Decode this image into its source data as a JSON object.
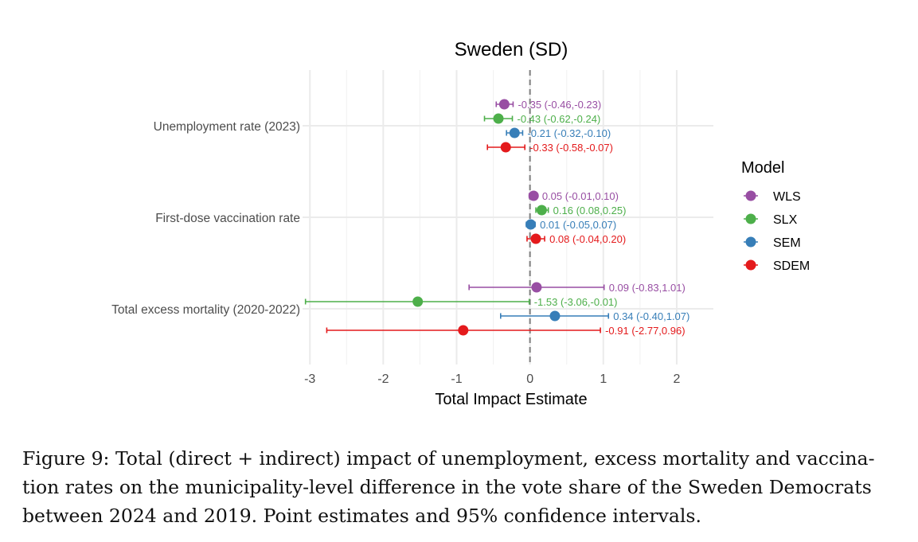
{
  "chart_data": {
    "type": "scatter",
    "subtype": "forest-plot",
    "title": "Sweden (SD)",
    "xlabel": "Total Impact Estimate",
    "ylabel": "",
    "xlim": [
      -3.1,
      2.5
    ],
    "xticks": [
      "-3",
      "-2",
      "-1",
      "0",
      "1",
      "2"
    ],
    "xtick_values": [
      -3,
      -2,
      -1,
      0,
      1,
      2
    ],
    "reference_line": 0,
    "grid": true,
    "categories": [
      "Unemployment rate (2023)",
      "First-dose vaccination rate",
      "Total excess mortality (2020-2022)"
    ],
    "legend": {
      "title": "Model",
      "position": "right",
      "entries": [
        {
          "name": "WLS",
          "color": "#984EA3"
        },
        {
          "name": "SLX",
          "color": "#4DAF4A"
        },
        {
          "name": "SEM",
          "color": "#377EB8"
        },
        {
          "name": "SDEM",
          "color": "#E41A1C"
        }
      ]
    },
    "series": [
      {
        "name": "WLS",
        "color": "#984EA3",
        "estimates": [
          -0.35,
          0.05,
          0.09
        ],
        "lower": [
          -0.46,
          -0.01,
          -0.83
        ],
        "upper": [
          -0.23,
          0.1,
          1.01
        ],
        "labels": [
          "-0.35 (-0.46,-0.23)",
          "0.05 (-0.01,0.10)",
          "0.09 (-0.83,1.01)"
        ]
      },
      {
        "name": "SLX",
        "color": "#4DAF4A",
        "estimates": [
          -0.43,
          0.16,
          -1.53
        ],
        "lower": [
          -0.62,
          0.08,
          -3.06
        ],
        "upper": [
          -0.24,
          0.25,
          -0.01
        ],
        "labels": [
          "-0.43 (-0.62,-0.24)",
          "0.16 (0.08,0.25)",
          "-1.53 (-3.06,-0.01)"
        ]
      },
      {
        "name": "SEM",
        "color": "#377EB8",
        "estimates": [
          -0.21,
          0.01,
          0.34
        ],
        "lower": [
          -0.32,
          -0.05,
          -0.4
        ],
        "upper": [
          -0.1,
          0.07,
          1.07
        ],
        "labels": [
          "-0.21 (-0.32,-0.10)",
          "0.01 (-0.05,0.07)",
          "0.34 (-0.40,1.07)"
        ]
      },
      {
        "name": "SDEM",
        "color": "#E41A1C",
        "estimates": [
          -0.33,
          0.08,
          -0.91
        ],
        "lower": [
          -0.58,
          -0.04,
          -2.77
        ],
        "upper": [
          -0.07,
          0.2,
          0.96
        ],
        "labels": [
          "-0.33 (-0.58,-0.07)",
          "0.08 (-0.04,0.20)",
          "-0.91 (-2.77,0.96)"
        ]
      }
    ]
  },
  "caption": {
    "lines": [
      "Figure 9: Total (direct + indirect) impact of unemployment, excess mortality and vaccina-",
      "tion rates on the municipality-level difference in the vote share of the Sweden Democrats",
      "between 2024 and 2019. Point estimates and 95% confidence intervals."
    ]
  }
}
